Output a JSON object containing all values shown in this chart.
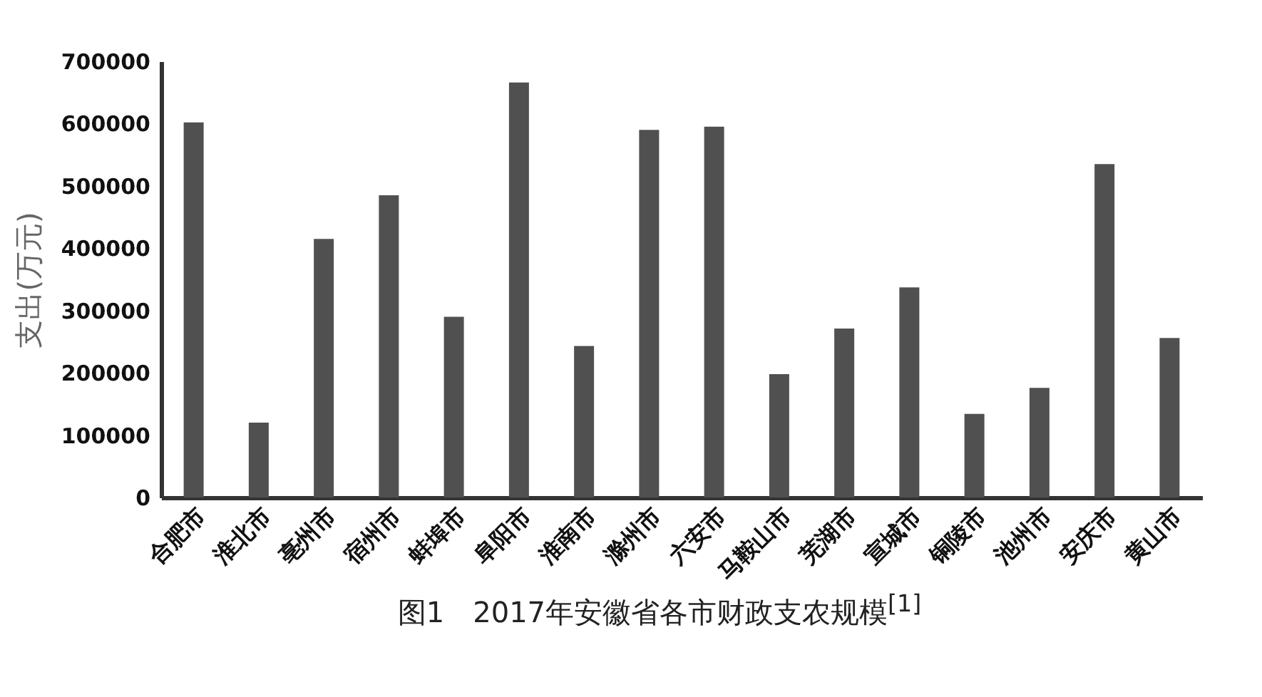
{
  "chart_data": {
    "type": "bar",
    "title": "图1　2017年安徽省各市财政支农规模$^{[1]}$",
    "ylabel": "支出(万元)",
    "categories": [
      "合肥市",
      "淮北市",
      "亳州市",
      "宿州市",
      "蚌埠市",
      "阜阳市",
      "淮南市",
      "滁州市",
      "六安市",
      "马鞍山市",
      "芜湖市",
      "宣城市",
      "铜陵市",
      "池州市",
      "安庆市",
      "黄山市"
    ],
    "values": [
      602000,
      120000,
      415000,
      485000,
      290000,
      666000,
      243000,
      590000,
      595000,
      198000,
      271000,
      337000,
      134000,
      176000,
      535000,
      256000
    ],
    "color": "#505050",
    "ylim": [
      0,
      700000
    ],
    "yticks": [
      0,
      100000,
      200000,
      300000,
      400000,
      500000,
      600000,
      700000
    ],
    "grid": false
  }
}
